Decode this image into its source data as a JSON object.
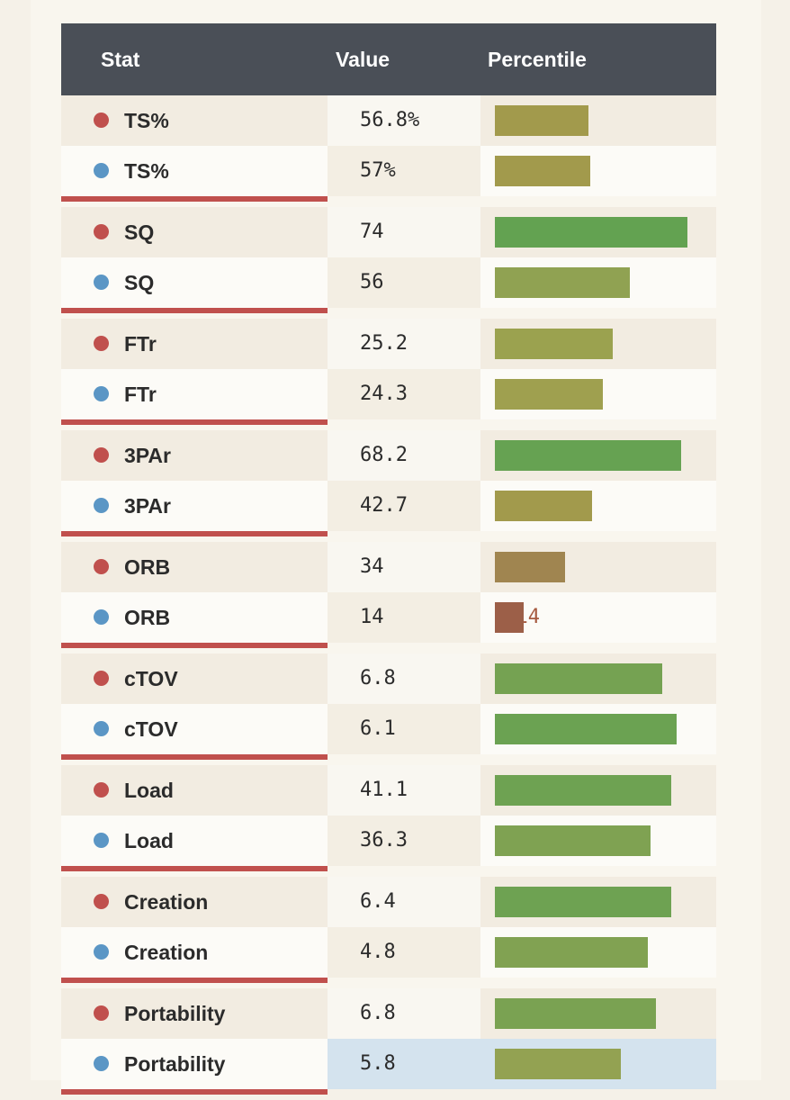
{
  "header": {
    "stat": "Stat",
    "value": "Value",
    "percentile": "Percentile"
  },
  "colors": {
    "header_bg": "#4a4f57",
    "separator": "#c0504d",
    "player_a_dot": "#c0504d",
    "player_b_dot": "#5b96c5"
  },
  "groups": [
    {
      "rows": [
        {
          "player": "a",
          "stat": "TS%",
          "value": "56.8%",
          "percentile": "45",
          "pct": 45,
          "num_color": "#9b8f3a",
          "bar_color": "#a29a4c"
        },
        {
          "player": "b",
          "stat": "TS%",
          "value": "57%",
          "percentile": "46",
          "pct": 46,
          "num_color": "#9b8f3a",
          "bar_color": "#a29a4c"
        }
      ]
    },
    {
      "rows": [
        {
          "player": "a",
          "stat": "SQ",
          "value": "74",
          "percentile": "93",
          "pct": 93,
          "num_color": "#5a9a45",
          "bar_color": "#63a251"
        },
        {
          "player": "b",
          "stat": "SQ",
          "value": "56",
          "percentile": "65",
          "pct": 65,
          "num_color": "#8a9c45",
          "bar_color": "#90a252"
        }
      ]
    },
    {
      "rows": [
        {
          "player": "a",
          "stat": "FTr",
          "value": "25.2",
          "percentile": "57",
          "pct": 57,
          "num_color": "#949a40",
          "bar_color": "#9ba24f"
        },
        {
          "player": "b",
          "stat": "FTr",
          "value": "24.3",
          "percentile": "52",
          "pct": 52,
          "num_color": "#979a40",
          "bar_color": "#9fa04f"
        }
      ]
    },
    {
      "rows": [
        {
          "player": "a",
          "stat": "3PAr",
          "value": "68.2",
          "percentile": "90",
          "pct": 90,
          "num_color": "#5e9b45",
          "bar_color": "#66a252"
        },
        {
          "player": "b",
          "stat": "3PAr",
          "value": "42.7",
          "percentile": "47",
          "pct": 47,
          "num_color": "#9b8f3a",
          "bar_color": "#a29a4c"
        }
      ]
    },
    {
      "rows": [
        {
          "player": "a",
          "stat": "ORB",
          "value": "34",
          "percentile": "34",
          "pct": 34,
          "num_color": "#9c7f42",
          "bar_color": "#a08550"
        },
        {
          "player": "b",
          "stat": "ORB",
          "value": "14",
          "percentile": "14",
          "pct": 14,
          "num_color": "#a65a40",
          "bar_color": "#9c5f48"
        }
      ]
    },
    {
      "rows": [
        {
          "player": "a",
          "stat": "cTOV",
          "value": "6.8",
          "percentile": "81",
          "pct": 81,
          "num_color": "#6c9e45",
          "bar_color": "#75a252"
        },
        {
          "player": "b",
          "stat": "cTOV",
          "value": "6.1",
          "percentile": "88",
          "pct": 88,
          "num_color": "#639c45",
          "bar_color": "#6ba252"
        }
      ]
    },
    {
      "rows": [
        {
          "player": "a",
          "stat": "Load",
          "value": "41.1",
          "percentile": "85",
          "pct": 85,
          "num_color": "#659c45",
          "bar_color": "#6ea252"
        },
        {
          "player": "b",
          "stat": "Load",
          "value": "36.3",
          "percentile": "75",
          "pct": 75,
          "num_color": "#789e45",
          "bar_color": "#7fa252"
        }
      ]
    },
    {
      "rows": [
        {
          "player": "a",
          "stat": "Creation",
          "value": "6.4",
          "percentile": "85",
          "pct": 85,
          "num_color": "#659c45",
          "bar_color": "#6ea252"
        },
        {
          "player": "b",
          "stat": "Creation",
          "value": "4.8",
          "percentile": "74",
          "pct": 74,
          "num_color": "#7a9e45",
          "bar_color": "#81a252"
        }
      ]
    },
    {
      "rows": [
        {
          "player": "a",
          "stat": "Portability",
          "value": "6.8",
          "percentile": "78",
          "pct": 78,
          "num_color": "#739e45",
          "bar_color": "#7aa252"
        },
        {
          "player": "b",
          "stat": "Portability",
          "value": "5.8",
          "percentile": "61",
          "pct": 61,
          "num_color": "#8e9c45",
          "bar_color": "#93a252",
          "highlight": true
        }
      ]
    }
  ]
}
